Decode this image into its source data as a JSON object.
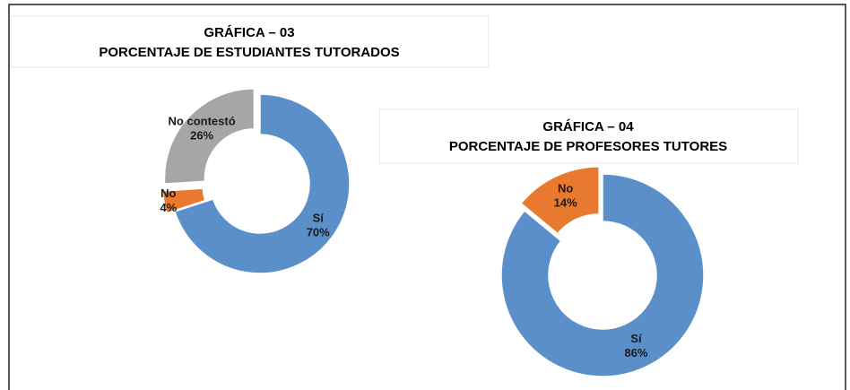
{
  "chart_data": [
    {
      "type": "donut",
      "title": "GRÁFICA – 03",
      "subtitle": "PORCENTAJE DE ESTUDIANTES TUTORADOS",
      "categories": [
        "Sí",
        "No",
        "No contestó"
      ],
      "values": [
        70,
        4,
        26
      ],
      "value_labels": [
        "70%",
        "4%",
        "26%"
      ],
      "colors": [
        "#5b8fca",
        "#e9792f",
        "#a6a6a6"
      ]
    },
    {
      "type": "donut",
      "title": "GRÁFICA – 04",
      "subtitle": "PORCENTAJE DE PROFESORES TUTORES",
      "categories": [
        "Sí",
        "No"
      ],
      "values": [
        86,
        14
      ],
      "value_labels": [
        "86%",
        "14%"
      ],
      "colors": [
        "#5b8fca",
        "#e9792f"
      ]
    }
  ]
}
